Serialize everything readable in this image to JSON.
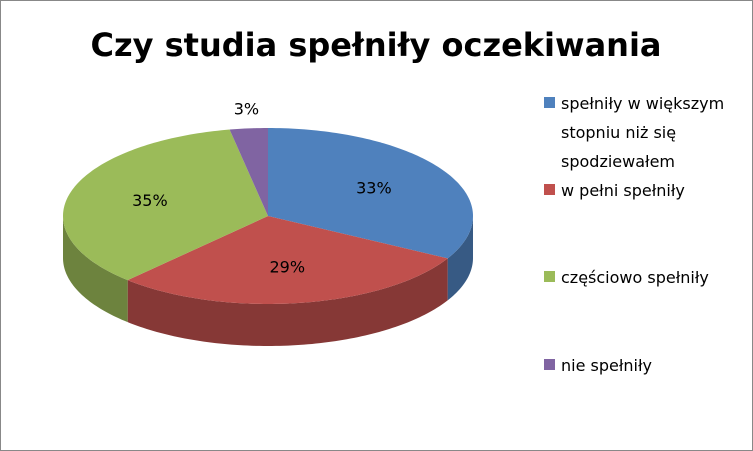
{
  "chart_data": {
    "type": "pie3d",
    "title": "Czy studia spełniły oczekiwania",
    "categories": [
      "spełniły w większym stopniu niż się spodziewałem",
      "w pełni spełniły",
      "częściowo spełniły",
      "nie spełniły"
    ],
    "values": [
      33,
      29,
      35,
      3
    ],
    "value_labels": [
      "33%",
      "29%",
      "35%",
      "3%"
    ],
    "colors": [
      "#4f81bd",
      "#c0504d",
      "#9bbb59",
      "#8064a2"
    ],
    "legend": "right"
  }
}
